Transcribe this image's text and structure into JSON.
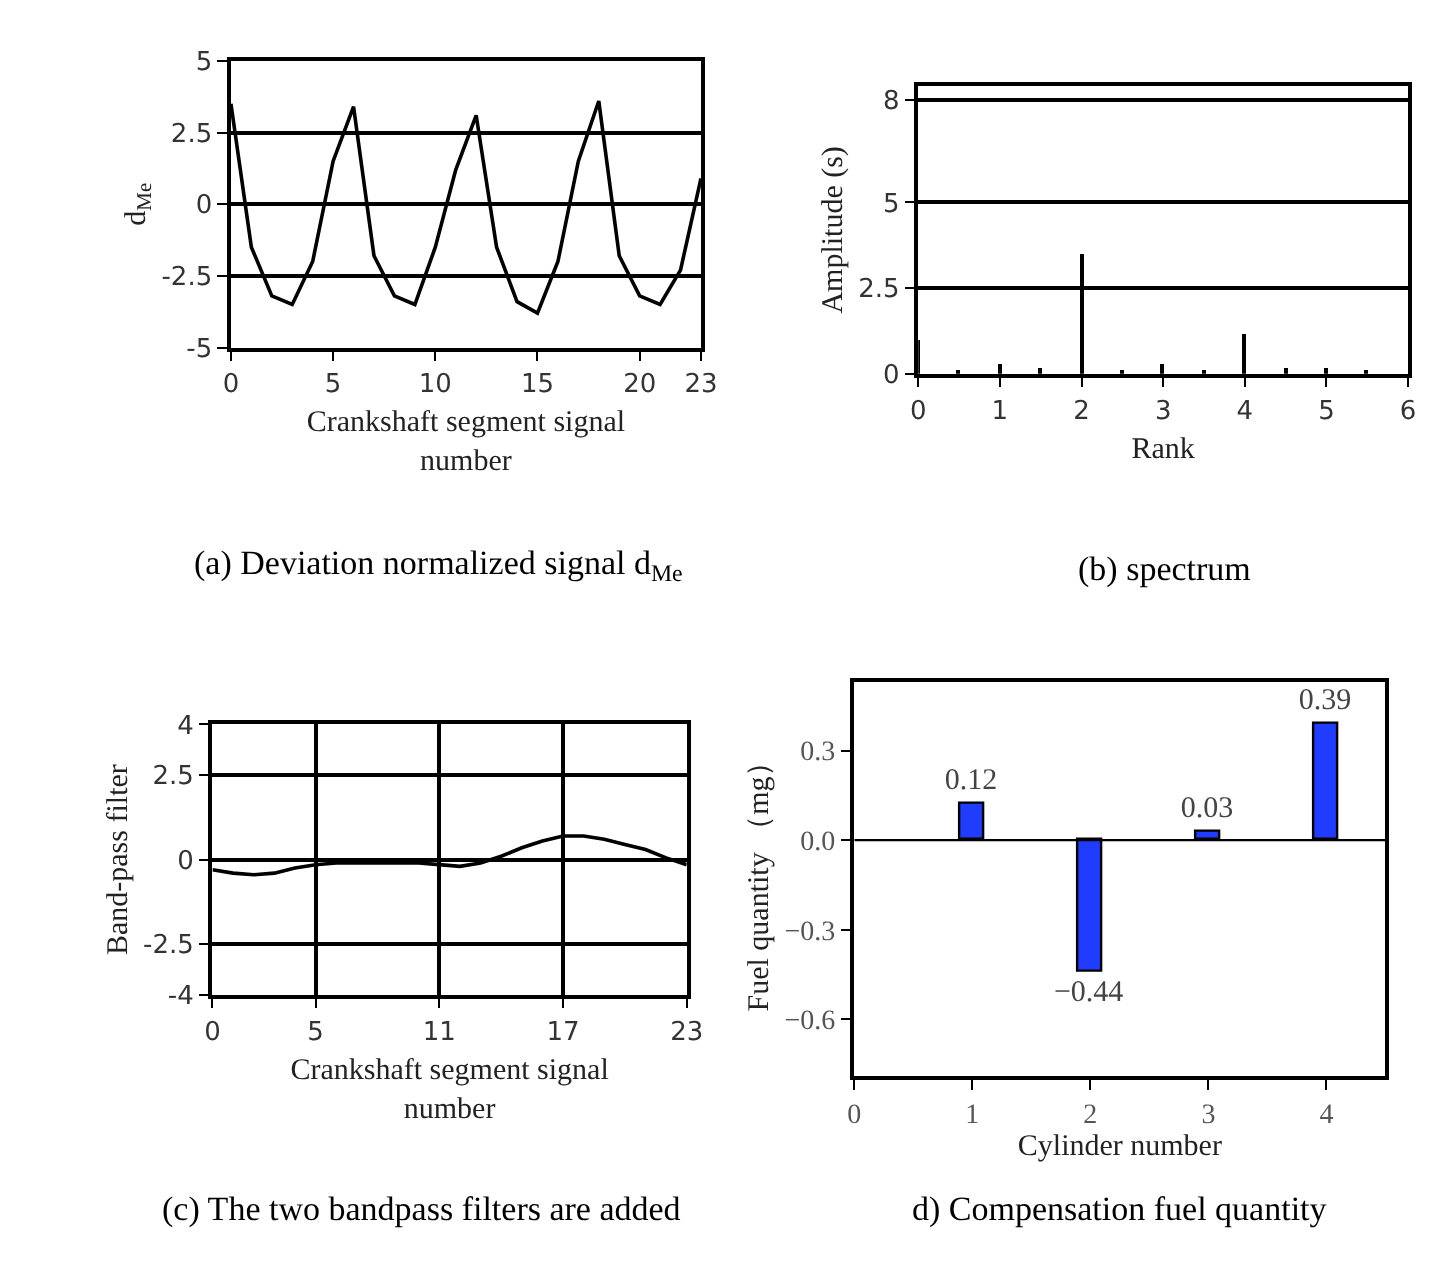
{
  "chart_data": [
    {
      "type": "line",
      "title": "(a) Deviation normalized signal d$_{Me}$",
      "xlabel": "Crankshaft segment signal number",
      "ylabel": "d$_{Me}$",
      "x": [
        0,
        1,
        2,
        3,
        4,
        5,
        6,
        7,
        8,
        9,
        10,
        11,
        12,
        13,
        14,
        15,
        16,
        17,
        18,
        19,
        20,
        21,
        22,
        23
      ],
      "series": [
        {
          "color": "#000000",
          "values": [
            3.5,
            -1.5,
            -3.2,
            -3.5,
            -2.0,
            1.5,
            3.4,
            -1.8,
            -3.2,
            -3.5,
            -1.5,
            1.2,
            3.1,
            -1.5,
            -3.4,
            -3.8,
            -2.0,
            1.5,
            3.6,
            -1.8,
            -3.2,
            -3.5,
            -2.3,
            0.9
          ]
        }
      ],
      "xlim": [
        0,
        23
      ],
      "xticks": [
        0,
        5,
        10,
        15,
        20,
        23
      ],
      "ylim": [
        -5,
        5
      ],
      "yticks": [
        -5,
        -2.5,
        0,
        2.5,
        5
      ],
      "grid": "y",
      "marker": "none",
      "line_style": "solid"
    },
    {
      "type": "bar",
      "title": "(b) spectrum",
      "xlabel": "Rank",
      "ylabel": "Amplitude (s)",
      "x": [
        0,
        0.5,
        1,
        1.5,
        2,
        2.5,
        3,
        3.5,
        4,
        4.5,
        5,
        5.5
      ],
      "series": [
        {
          "color": "#000000",
          "values": [
            1.0,
            0.1,
            0.3,
            0.2,
            3.5,
            0.1,
            0.3,
            0.1,
            1.15,
            0.15,
            0.2,
            0.1
          ]
        }
      ],
      "xlim": [
        0,
        6
      ],
      "xticks": [
        0,
        1,
        2,
        3,
        4,
        5,
        6
      ],
      "ylim": [
        0,
        8.4
      ],
      "yticks": [
        0,
        2.5,
        5,
        8
      ],
      "grid": "y"
    },
    {
      "type": "line",
      "title": "(c) The two bandpass filters are added",
      "xlabel": "Crankshaft segment signal number",
      "ylabel": "Band-pass filter",
      "x": [
        0,
        1,
        2,
        3,
        4,
        5,
        6,
        7,
        8,
        9,
        10,
        11,
        12,
        13,
        14,
        15,
        16,
        17,
        18,
        19,
        20,
        21,
        22,
        23
      ],
      "series": [
        {
          "color": "#000000",
          "values": [
            -0.3,
            -0.4,
            -0.45,
            -0.4,
            -0.25,
            -0.15,
            -0.1,
            -0.1,
            -0.1,
            -0.1,
            -0.1,
            -0.15,
            -0.2,
            -0.1,
            0.1,
            0.35,
            0.55,
            0.7,
            0.7,
            0.6,
            0.45,
            0.3,
            0.05,
            -0.15
          ]
        }
      ],
      "xlim": [
        0,
        23
      ],
      "xticks": [
        0,
        5,
        11,
        17,
        23
      ],
      "ylim": [
        -4,
        4
      ],
      "yticks": [
        -4,
        -2.5,
        0,
        2.5,
        4
      ],
      "grid": true,
      "marker": "none",
      "line_style": "solid"
    },
    {
      "type": "bar",
      "title": "d) Compensation fuel quantity",
      "xlabel": "Cylinder number",
      "ylabel": "Fuel quantity （mg）",
      "x": [
        1,
        2,
        3,
        4
      ],
      "series": [
        {
          "color": "#1f3cff",
          "values": [
            0.12,
            -0.44,
            0.03,
            0.39
          ],
          "value_labels": [
            "0.12",
            "−0.44",
            "0.03",
            "0.39"
          ]
        }
      ],
      "xlim": [
        0,
        4.5
      ],
      "xticks": [
        0,
        1,
        2,
        3,
        4
      ],
      "ylim": [
        -0.79,
        0.53
      ],
      "yticks": [
        {
          "value": -0.6,
          "label": "−0.6"
        },
        {
          "value": -0.3,
          "label": "−0.3"
        },
        {
          "value": 0,
          "label": "0.0"
        },
        {
          "value": 0.3,
          "label": "0.3"
        }
      ],
      "grid": false,
      "ref_lines": [
        {
          "axis": "y",
          "value": 0,
          "color": "#000000",
          "line_style": "solid"
        }
      ]
    }
  ]
}
